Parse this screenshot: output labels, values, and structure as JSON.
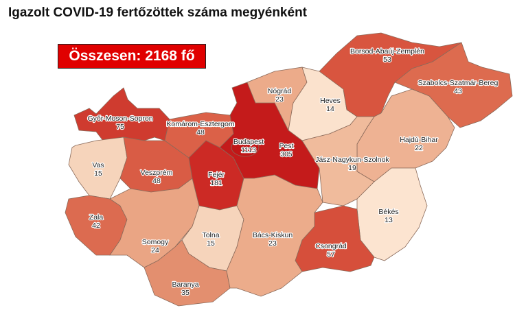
{
  "title": "Igazolt COVID-19 fertőzöttek száma megyénként",
  "total_label": "Összesen: 2168 fő",
  "counties": [
    {
      "name": "Győr-Moson-Sopron",
      "value": "75",
      "color": "#cf3b2f"
    },
    {
      "name": "Vas",
      "value": "15",
      "color": "#f6d4bb"
    },
    {
      "name": "Zala",
      "value": "42",
      "color": "#dc6b50"
    },
    {
      "name": "Veszprém",
      "value": "48",
      "color": "#d95c45"
    },
    {
      "name": "Komárom-Esztergom",
      "value": "48",
      "color": "#db6148"
    },
    {
      "name": "Fejér",
      "value": "181",
      "color": "#cc2a25"
    },
    {
      "name": "Somogy",
      "value": "24",
      "color": "#eaa584"
    },
    {
      "name": "Tolna",
      "value": "15",
      "color": "#f6d4bb"
    },
    {
      "name": "Baranya",
      "value": "35",
      "color": "#e38f6f"
    },
    {
      "name": "Pest",
      "value": "305",
      "color": "#c41b1b"
    },
    {
      "name": "Budapest",
      "value": "1113",
      "color": "#c01616"
    },
    {
      "name": "Nógrád",
      "value": "23",
      "color": "#ecab8a"
    },
    {
      "name": "Heves",
      "value": "14",
      "color": "#fbe2cd"
    },
    {
      "name": "Borsod-Abaúj-Zemplén",
      "value": "53",
      "color": "#d8553f"
    },
    {
      "name": "Szabolcs-Szatmár-Bereg",
      "value": "43",
      "color": "#dd6b4f"
    },
    {
      "name": "Hajdú-Bihar",
      "value": "22",
      "color": "#eeb293"
    },
    {
      "name": "Jász-Nagykun-Szolnok",
      "value": "19",
      "color": "#f0bb9c"
    },
    {
      "name": "Békés",
      "value": "13",
      "color": "#fce4d0"
    },
    {
      "name": "Csongrád",
      "value": "57",
      "color": "#d64f3b"
    },
    {
      "name": "Bács-Kiskun",
      "value": "23",
      "color": "#ecac8b"
    }
  ]
}
